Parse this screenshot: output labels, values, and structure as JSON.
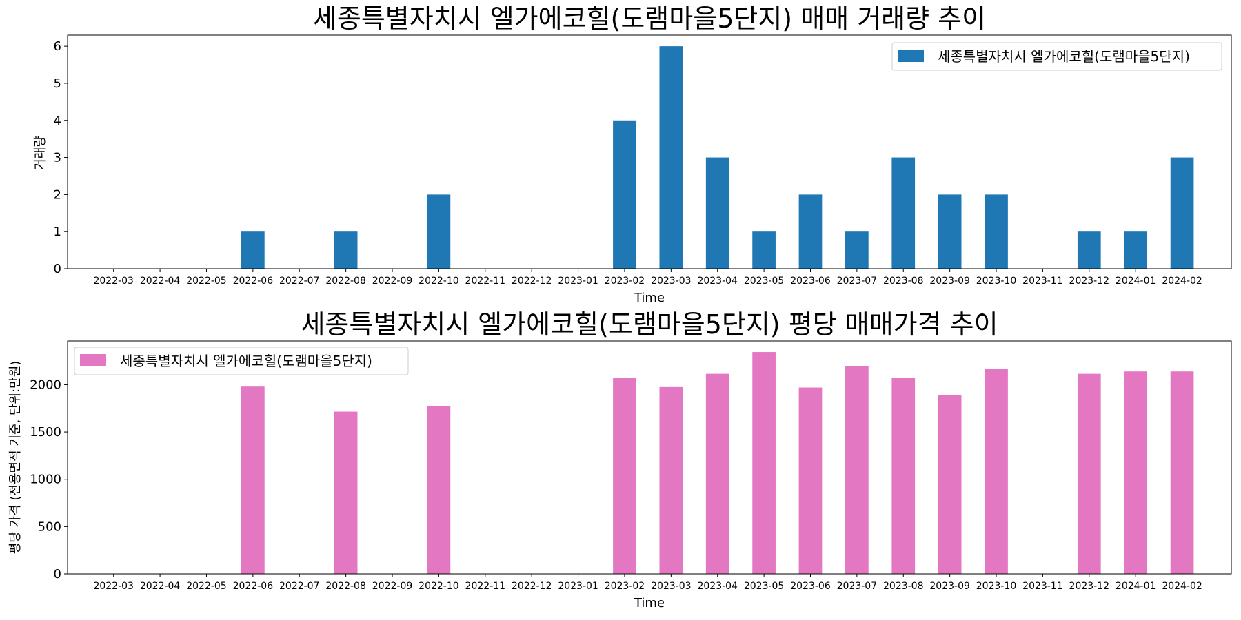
{
  "chart_data": [
    {
      "type": "bar",
      "title": "세종특별자치시 엘가에코힐(도램마을5단지) 매매 거래량 추이",
      "xlabel": "Time",
      "ylabel": "거래량",
      "categories": [
        "2022-03",
        "2022-04",
        "2022-05",
        "2022-06",
        "2022-07",
        "2022-08",
        "2022-09",
        "2022-10",
        "2022-11",
        "2022-12",
        "2023-01",
        "2023-02",
        "2023-03",
        "2023-04",
        "2023-05",
        "2023-06",
        "2023-07",
        "2023-08",
        "2023-09",
        "2023-10",
        "2023-11",
        "2023-12",
        "2024-01",
        "2024-02"
      ],
      "series": [
        {
          "name": "세종특별자치시 엘가에코힐(도램마을5단지)",
          "color": "#1f77b4",
          "values": [
            0,
            0,
            0,
            1,
            0,
            1,
            0,
            2,
            0,
            0,
            0,
            4,
            6,
            3,
            1,
            2,
            1,
            3,
            2,
            2,
            0,
            1,
            1,
            3
          ]
        }
      ],
      "ylim": [
        0,
        6.3
      ],
      "yticks": [
        0,
        1,
        2,
        3,
        4,
        5,
        6
      ],
      "legend_position": "upper right",
      "grid": false
    },
    {
      "type": "bar",
      "title": "세종특별자치시 엘가에코힐(도램마을5단지) 평당 매매가격 추이",
      "xlabel": "Time",
      "ylabel": "평당 가격 (전용면적 기준, 단위:만원)",
      "categories": [
        "2022-03",
        "2022-04",
        "2022-05",
        "2022-06",
        "2022-07",
        "2022-08",
        "2022-09",
        "2022-10",
        "2022-11",
        "2022-12",
        "2023-01",
        "2023-02",
        "2023-03",
        "2023-04",
        "2023-05",
        "2023-06",
        "2023-07",
        "2023-08",
        "2023-09",
        "2023-10",
        "2023-11",
        "2023-12",
        "2024-01",
        "2024-02"
      ],
      "series": [
        {
          "name": "세종특별자치시 엘가에코힐(도램마을5단지)",
          "color": "#e377c2",
          "values": [
            0,
            0,
            0,
            1980,
            0,
            1715,
            0,
            1775,
            0,
            0,
            0,
            2070,
            1975,
            2115,
            2345,
            1970,
            2195,
            2070,
            1890,
            2165,
            0,
            2115,
            2140,
            2140
          ]
        }
      ],
      "ylim": [
        0,
        2462
      ],
      "yticks": [
        0,
        500,
        1000,
        1500,
        2000
      ],
      "legend_position": "upper left",
      "grid": false
    }
  ]
}
